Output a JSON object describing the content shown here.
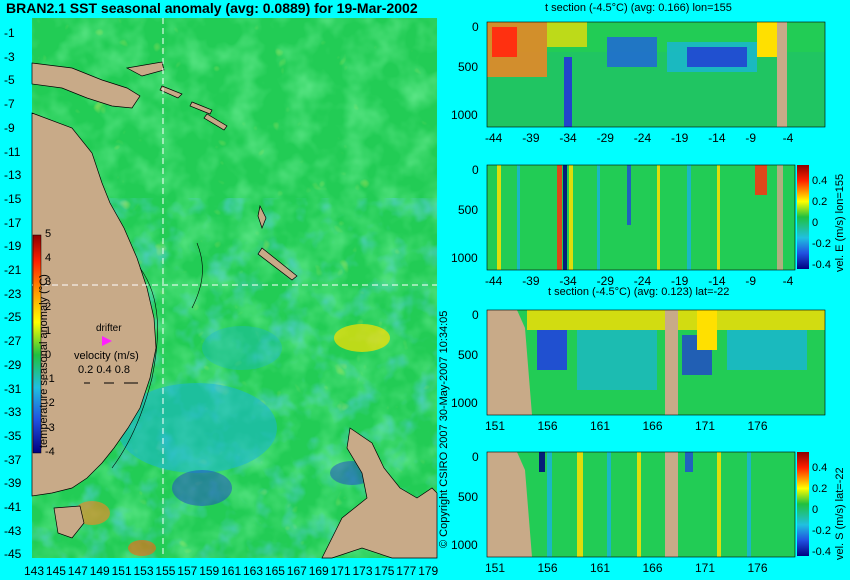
{
  "map": {
    "title": "BRAN2.1 SST seasonal anomaly (avg: 0.0889) for 19-Mar-2002",
    "y_ticks": [
      "-1",
      "-3",
      "-5",
      "-7",
      "-9",
      "-11",
      "-13",
      "-15",
      "-17",
      "-19",
      "-21",
      "-23",
      "-25",
      "-27",
      "-29",
      "-31",
      "-33",
      "-35",
      "-37",
      "-39",
      "-41",
      "-43",
      "-45"
    ],
    "x_ticks": [
      "143",
      "145",
      "147",
      "149",
      "151",
      "153",
      "155",
      "157",
      "159",
      "161",
      "163",
      "165",
      "167",
      "169",
      "171",
      "173",
      "175",
      "177",
      "179"
    ],
    "colorbar_label": "temperature seasonal anomaly (°C)",
    "colorbar_ticks": [
      "5",
      "4",
      "3",
      "2",
      "1",
      "0",
      "-1",
      "-2",
      "-3",
      "-4"
    ],
    "drifter_label": "drifter",
    "velocity_label": "velocity (m/s)",
    "velocity_scale": "0.2 0.4 0.8",
    "crosshair": {
      "lon": 155,
      "lat": -22
    }
  },
  "side_text": "© Copyright CSIRO 2007  30-May-2007 10:34:05",
  "panels": [
    {
      "id": "t-section-lon",
      "title": "t section (-4.5°C) (avg: 0.166) lon=155",
      "y_ticks": [
        "0",
        "500",
        "1000"
      ],
      "x_ticks": [
        "-44",
        "-39",
        "-34",
        "-29",
        "-24",
        "-19",
        "-14",
        "-9",
        "-4"
      ]
    },
    {
      "id": "vel-e-lon",
      "title": "",
      "y_ticks": [
        "0",
        "500",
        "1000"
      ],
      "x_ticks": [
        "-44",
        "-39",
        "-34",
        "-29",
        "-24",
        "-19",
        "-14",
        "-9",
        "-4"
      ],
      "cb_label": "vel. E (m/s) lon=155",
      "cb_ticks": [
        "0.4",
        "0.2",
        "0",
        "-0.2",
        "-0.4"
      ]
    },
    {
      "id": "t-section-lat",
      "title": "t section (-4.5°C) (avg: 0.123) lat=-22",
      "y_ticks": [
        "0",
        "500",
        "1000"
      ],
      "x_ticks": [
        "151",
        "156",
        "161",
        "166",
        "171",
        "176"
      ]
    },
    {
      "id": "vel-s-lat",
      "title": "",
      "y_ticks": [
        "0",
        "500",
        "1000"
      ],
      "x_ticks": [
        "151",
        "156",
        "161",
        "166",
        "171",
        "176"
      ],
      "cb_label": "vel. S (m/s) lat=-22",
      "cb_ticks": [
        "0.4",
        "0.2",
        "0",
        "-0.2",
        "-0.4"
      ]
    }
  ],
  "colors": {
    "land": "#c8aa88",
    "ocean_base": "#22cc55",
    "warm": "#ffe000",
    "hot": "#ff5010",
    "cool": "#19b5d8",
    "cold": "#2244cc",
    "cyan_bg": "#00ffff"
  },
  "chart_data": [
    {
      "type": "heatmap",
      "title": "BRAN2.1 SST seasonal anomaly (avg: 0.0889) for 19-Mar-2002",
      "x_range": [
        142,
        180
      ],
      "y_range": [
        -45,
        0
      ],
      "colorbar_range": [
        -4,
        5
      ],
      "colorbar_label": "temperature seasonal anomaly (°C)"
    },
    {
      "type": "heatmap",
      "title": "t section (-4.5°C) (avg: 0.166) lon=155",
      "x_range": [
        -46,
        0
      ],
      "y_range": [
        0,
        1050
      ]
    },
    {
      "type": "heatmap",
      "title": "",
      "x_range": [
        -46,
        0
      ],
      "y_range": [
        0,
        1050
      ],
      "colorbar_range": [
        -0.4,
        0.4
      ],
      "colorbar_label": "vel. E (m/s) lon=155"
    },
    {
      "type": "heatmap",
      "title": "t section (-4.5°C) (avg: 0.123) lat=-22",
      "x_range": [
        150,
        180
      ],
      "y_range": [
        0,
        1050
      ]
    },
    {
      "type": "heatmap",
      "title": "",
      "x_range": [
        150,
        180
      ],
      "y_range": [
        0,
        1050
      ],
      "colorbar_range": [
        -0.4,
        0.4
      ],
      "colorbar_label": "vel. S (m/s) lat=-22"
    }
  ]
}
